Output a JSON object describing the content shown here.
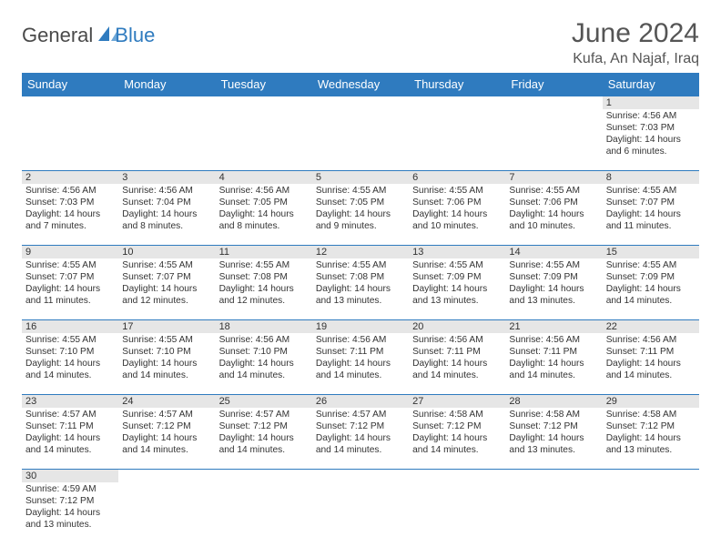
{
  "logo": {
    "general": "General",
    "blue": "Blue"
  },
  "header": {
    "title": "June 2024",
    "location": "Kufa, An Najaf, Iraq"
  },
  "colors": {
    "header_bg": "#2f7bbf",
    "header_text": "#ffffff",
    "daynum_bg": "#e6e6e6",
    "border": "#2f7bbf",
    "title_color": "#555555",
    "body_text": "#333333"
  },
  "typography": {
    "title_fontsize": 30,
    "location_fontsize": 16,
    "dayhead_fontsize": 13,
    "daynum_fontsize": 11,
    "cell_fontsize": 10.2
  },
  "day_names": [
    "Sunday",
    "Monday",
    "Tuesday",
    "Wednesday",
    "Thursday",
    "Friday",
    "Saturday"
  ],
  "weeks": [
    [
      {
        "n": "",
        "sr": "",
        "ss": "",
        "dl": ""
      },
      {
        "n": "",
        "sr": "",
        "ss": "",
        "dl": ""
      },
      {
        "n": "",
        "sr": "",
        "ss": "",
        "dl": ""
      },
      {
        "n": "",
        "sr": "",
        "ss": "",
        "dl": ""
      },
      {
        "n": "",
        "sr": "",
        "ss": "",
        "dl": ""
      },
      {
        "n": "",
        "sr": "",
        "ss": "",
        "dl": ""
      },
      {
        "n": "1",
        "sr": "Sunrise: 4:56 AM",
        "ss": "Sunset: 7:03 PM",
        "dl": "Daylight: 14 hours and 6 minutes."
      }
    ],
    [
      {
        "n": "2",
        "sr": "Sunrise: 4:56 AM",
        "ss": "Sunset: 7:03 PM",
        "dl": "Daylight: 14 hours and 7 minutes."
      },
      {
        "n": "3",
        "sr": "Sunrise: 4:56 AM",
        "ss": "Sunset: 7:04 PM",
        "dl": "Daylight: 14 hours and 8 minutes."
      },
      {
        "n": "4",
        "sr": "Sunrise: 4:56 AM",
        "ss": "Sunset: 7:05 PM",
        "dl": "Daylight: 14 hours and 8 minutes."
      },
      {
        "n": "5",
        "sr": "Sunrise: 4:55 AM",
        "ss": "Sunset: 7:05 PM",
        "dl": "Daylight: 14 hours and 9 minutes."
      },
      {
        "n": "6",
        "sr": "Sunrise: 4:55 AM",
        "ss": "Sunset: 7:06 PM",
        "dl": "Daylight: 14 hours and 10 minutes."
      },
      {
        "n": "7",
        "sr": "Sunrise: 4:55 AM",
        "ss": "Sunset: 7:06 PM",
        "dl": "Daylight: 14 hours and 10 minutes."
      },
      {
        "n": "8",
        "sr": "Sunrise: 4:55 AM",
        "ss": "Sunset: 7:07 PM",
        "dl": "Daylight: 14 hours and 11 minutes."
      }
    ],
    [
      {
        "n": "9",
        "sr": "Sunrise: 4:55 AM",
        "ss": "Sunset: 7:07 PM",
        "dl": "Daylight: 14 hours and 11 minutes."
      },
      {
        "n": "10",
        "sr": "Sunrise: 4:55 AM",
        "ss": "Sunset: 7:07 PM",
        "dl": "Daylight: 14 hours and 12 minutes."
      },
      {
        "n": "11",
        "sr": "Sunrise: 4:55 AM",
        "ss": "Sunset: 7:08 PM",
        "dl": "Daylight: 14 hours and 12 minutes."
      },
      {
        "n": "12",
        "sr": "Sunrise: 4:55 AM",
        "ss": "Sunset: 7:08 PM",
        "dl": "Daylight: 14 hours and 13 minutes."
      },
      {
        "n": "13",
        "sr": "Sunrise: 4:55 AM",
        "ss": "Sunset: 7:09 PM",
        "dl": "Daylight: 14 hours and 13 minutes."
      },
      {
        "n": "14",
        "sr": "Sunrise: 4:55 AM",
        "ss": "Sunset: 7:09 PM",
        "dl": "Daylight: 14 hours and 13 minutes."
      },
      {
        "n": "15",
        "sr": "Sunrise: 4:55 AM",
        "ss": "Sunset: 7:09 PM",
        "dl": "Daylight: 14 hours and 14 minutes."
      }
    ],
    [
      {
        "n": "16",
        "sr": "Sunrise: 4:55 AM",
        "ss": "Sunset: 7:10 PM",
        "dl": "Daylight: 14 hours and 14 minutes."
      },
      {
        "n": "17",
        "sr": "Sunrise: 4:55 AM",
        "ss": "Sunset: 7:10 PM",
        "dl": "Daylight: 14 hours and 14 minutes."
      },
      {
        "n": "18",
        "sr": "Sunrise: 4:56 AM",
        "ss": "Sunset: 7:10 PM",
        "dl": "Daylight: 14 hours and 14 minutes."
      },
      {
        "n": "19",
        "sr": "Sunrise: 4:56 AM",
        "ss": "Sunset: 7:11 PM",
        "dl": "Daylight: 14 hours and 14 minutes."
      },
      {
        "n": "20",
        "sr": "Sunrise: 4:56 AM",
        "ss": "Sunset: 7:11 PM",
        "dl": "Daylight: 14 hours and 14 minutes."
      },
      {
        "n": "21",
        "sr": "Sunrise: 4:56 AM",
        "ss": "Sunset: 7:11 PM",
        "dl": "Daylight: 14 hours and 14 minutes."
      },
      {
        "n": "22",
        "sr": "Sunrise: 4:56 AM",
        "ss": "Sunset: 7:11 PM",
        "dl": "Daylight: 14 hours and 14 minutes."
      }
    ],
    [
      {
        "n": "23",
        "sr": "Sunrise: 4:57 AM",
        "ss": "Sunset: 7:11 PM",
        "dl": "Daylight: 14 hours and 14 minutes."
      },
      {
        "n": "24",
        "sr": "Sunrise: 4:57 AM",
        "ss": "Sunset: 7:12 PM",
        "dl": "Daylight: 14 hours and 14 minutes."
      },
      {
        "n": "25",
        "sr": "Sunrise: 4:57 AM",
        "ss": "Sunset: 7:12 PM",
        "dl": "Daylight: 14 hours and 14 minutes."
      },
      {
        "n": "26",
        "sr": "Sunrise: 4:57 AM",
        "ss": "Sunset: 7:12 PM",
        "dl": "Daylight: 14 hours and 14 minutes."
      },
      {
        "n": "27",
        "sr": "Sunrise: 4:58 AM",
        "ss": "Sunset: 7:12 PM",
        "dl": "Daylight: 14 hours and 14 minutes."
      },
      {
        "n": "28",
        "sr": "Sunrise: 4:58 AM",
        "ss": "Sunset: 7:12 PM",
        "dl": "Daylight: 14 hours and 13 minutes."
      },
      {
        "n": "29",
        "sr": "Sunrise: 4:58 AM",
        "ss": "Sunset: 7:12 PM",
        "dl": "Daylight: 14 hours and 13 minutes."
      }
    ],
    [
      {
        "n": "30",
        "sr": "Sunrise: 4:59 AM",
        "ss": "Sunset: 7:12 PM",
        "dl": "Daylight: 14 hours and 13 minutes."
      },
      {
        "n": "",
        "sr": "",
        "ss": "",
        "dl": ""
      },
      {
        "n": "",
        "sr": "",
        "ss": "",
        "dl": ""
      },
      {
        "n": "",
        "sr": "",
        "ss": "",
        "dl": ""
      },
      {
        "n": "",
        "sr": "",
        "ss": "",
        "dl": ""
      },
      {
        "n": "",
        "sr": "",
        "ss": "",
        "dl": ""
      },
      {
        "n": "",
        "sr": "",
        "ss": "",
        "dl": ""
      }
    ]
  ]
}
